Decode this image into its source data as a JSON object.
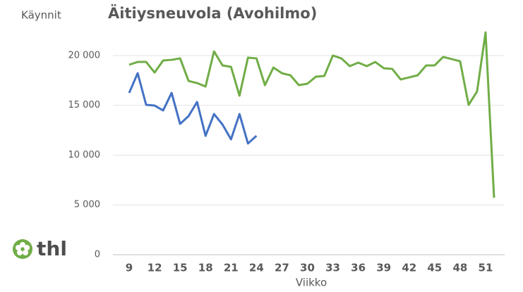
{
  "chart_data": {
    "type": "line",
    "title": "Äitiysneuvola (Avohilmo)",
    "y_label": "Käynnit",
    "x_label": "Viikko",
    "logo": "thl",
    "x": [
      9,
      10,
      11,
      12,
      13,
      14,
      15,
      16,
      17,
      18,
      19,
      20,
      21,
      22,
      23,
      24,
      25,
      26,
      27,
      28,
      29,
      30,
      31,
      32,
      33,
      34,
      35,
      36,
      37,
      38,
      39,
      40,
      41,
      42,
      43,
      44,
      45,
      46,
      47,
      48,
      49,
      50,
      51,
      52
    ],
    "series": [
      {
        "color": "#70ad47",
        "values": [
          19080,
          19360,
          19360,
          18300,
          19500,
          19570,
          19720,
          17450,
          17240,
          16890,
          20420,
          19010,
          18870,
          15970,
          19790,
          19720,
          17030,
          18800,
          18230,
          18020,
          17030,
          17170,
          17880,
          17950,
          20000,
          19720,
          18940,
          19290,
          18940,
          19360,
          18730,
          18660,
          17600,
          17810,
          18020,
          19010,
          19010,
          19860,
          19650,
          19430,
          15050,
          16400,
          22330,
          5720
        ]
      },
      {
        "color": "#4472c4",
        "values": [
          16250,
          18230,
          15050,
          14980,
          14490,
          16250,
          13140,
          13920,
          15340,
          11940,
          14130,
          13070,
          11590,
          14130,
          11170,
          11940,
          null,
          null,
          null,
          null,
          null,
          null,
          null,
          null,
          null,
          null,
          null,
          null,
          null,
          null,
          null,
          null,
          null,
          null,
          null,
          null,
          null,
          null,
          null,
          null,
          null,
          null,
          null,
          null
        ]
      }
    ],
    "xlim": [
      8,
      53
    ],
    "xticks": [
      9,
      12,
      15,
      18,
      21,
      24,
      27,
      30,
      33,
      36,
      39,
      42,
      45,
      48,
      51
    ],
    "ylim": [
      0,
      22500
    ],
    "yticks": [
      0,
      {
        "value": 5000,
        "label": "5 000"
      },
      {
        "value": 10000,
        "label": "10 000"
      },
      {
        "value": 15000,
        "label": "15 000"
      },
      {
        "value": 20000,
        "label": "20 000"
      }
    ],
    "grid": true
  }
}
